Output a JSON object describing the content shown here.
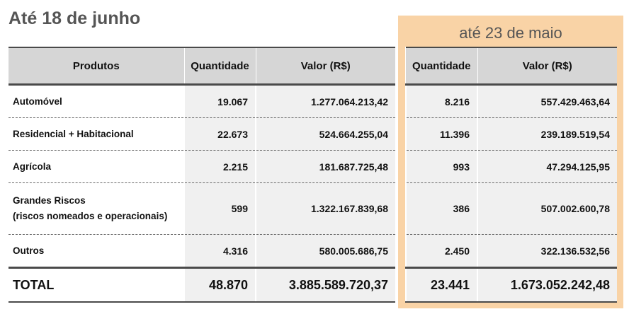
{
  "title_left": "Até 18 de junho",
  "title_right": "até 23 de maio",
  "headers": {
    "produtos": "Produtos",
    "quantidade": "Quantidade",
    "valor": "Valor (R$)"
  },
  "rows": [
    {
      "label": [
        "Automóvel"
      ],
      "q1": "19.067",
      "v1": "1.277.064.213,42",
      "q2": "8.216",
      "v2": "557.429.463,64"
    },
    {
      "label": [
        "Residencial + Habitacional"
      ],
      "q1": "22.673",
      "v1": "524.664.255,04",
      "q2": "11.396",
      "v2": "239.189.519,54"
    },
    {
      "label": [
        "Agrícola"
      ],
      "q1": "2.215",
      "v1": "181.687.725,48",
      "q2": "993",
      "v2": "47.294.125,95"
    },
    {
      "label": [
        "Grandes Riscos",
        "(riscos nomeados e operacionais)"
      ],
      "q1": "599",
      "v1": "1.322.167.839,68",
      "q2": "386",
      "v2": "507.002.600,78"
    },
    {
      "label": [
        "Outros"
      ],
      "q1": "4.316",
      "v1": "580.005.686,75",
      "q2": "2.450",
      "v2": "322.136.532,56"
    }
  ],
  "total": {
    "label": "TOTAL",
    "q1": "48.870",
    "v1": "3.885.589.720,37",
    "q2": "23.441",
    "v2": "1.673.052.242,48"
  }
}
